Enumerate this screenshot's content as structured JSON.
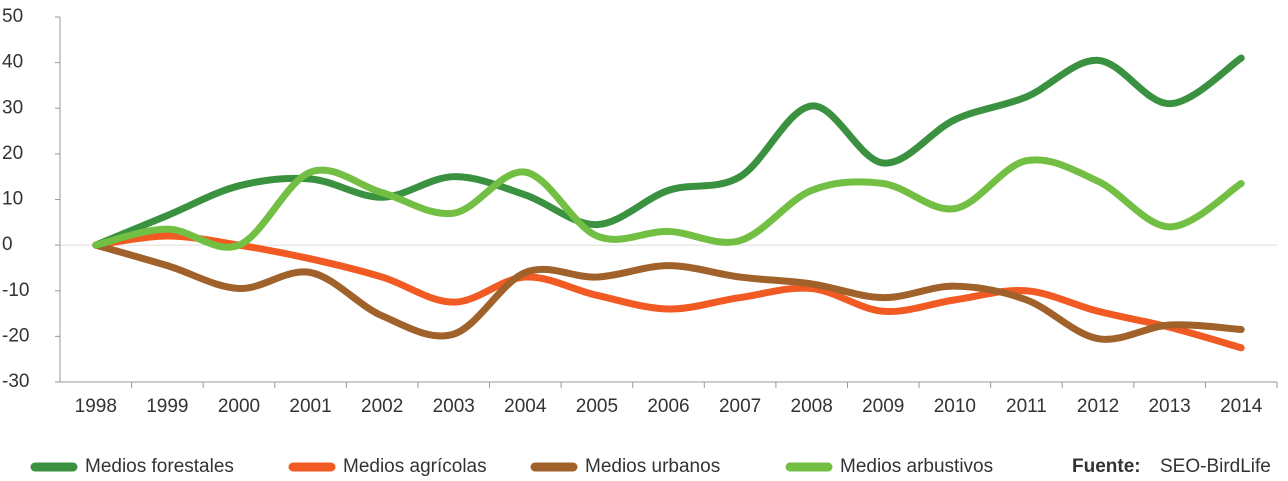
{
  "chart_data": {
    "type": "line",
    "categories": [
      "1998",
      "1999",
      "2000",
      "2001",
      "2002",
      "2003",
      "2004",
      "2005",
      "2006",
      "2007",
      "2008",
      "2009",
      "2010",
      "2011",
      "2012",
      "2013",
      "2014"
    ],
    "series": [
      {
        "name": "Medios forestales",
        "color": "#3a913f",
        "values": [
          0,
          6.5,
          13,
          14.5,
          10.5,
          15,
          11,
          4.5,
          12,
          15,
          30.5,
          18,
          27.5,
          32.5,
          40.5,
          31,
          41
        ]
      },
      {
        "name": "Medios agrícolas",
        "color": "#f15a22",
        "values": [
          0,
          2,
          0,
          -3,
          -7,
          -12.5,
          -7,
          -11,
          -14,
          -11.5,
          -9.5,
          -14.5,
          -12,
          -10,
          -14.5,
          -18,
          -22.5
        ]
      },
      {
        "name": "Medios urbanos",
        "color": "#a0612a",
        "values": [
          0,
          -4.5,
          -9.5,
          -6,
          -15.5,
          -19.5,
          -6,
          -7,
          -4.5,
          -7,
          -8.5,
          -11.5,
          -9,
          -12,
          -20.5,
          -17.5,
          -18.5
        ]
      },
      {
        "name": "Medios arbustivos",
        "color": "#72bf44",
        "values": [
          0,
          3.5,
          0,
          16,
          11.5,
          7,
          16,
          2,
          3,
          1,
          12,
          13.5,
          8,
          18.5,
          14,
          4,
          13.5
        ]
      }
    ],
    "ylim": [
      -30,
      50
    ],
    "yticks": [
      -30,
      -20,
      -10,
      0,
      10,
      20,
      30,
      40,
      50
    ],
    "source_label": "Fuente:",
    "source": "SEO-BirdLife"
  }
}
